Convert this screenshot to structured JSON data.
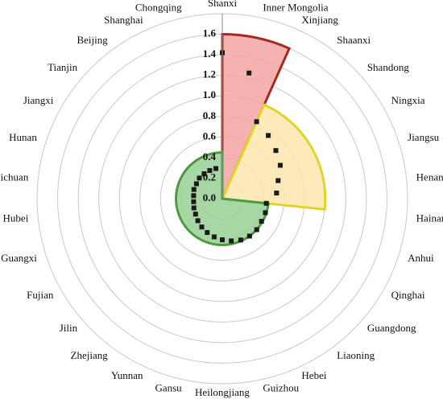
{
  "chart_data": {
    "type": "polar",
    "categories": [
      "Shanxi",
      "Inner Mongolia",
      "Xinjiang",
      "Shaanxi",
      "Shandong",
      "Ningxia",
      "Jiangsu",
      "Henan",
      "Hainan",
      "Anhui",
      "Qinghai",
      "Guangdong",
      "Liaoning",
      "Hebei",
      "Guizhou",
      "Heilongjiang",
      "Gansu",
      "Yunnan",
      "Zhejiang",
      "Jilin",
      "Fujian",
      "Guangxi",
      "Hubei",
      "Sichuan",
      "Hunan",
      "Jiangxi",
      "Tianjin",
      "Beijing",
      "Shanghai",
      "Chongqing"
    ],
    "values": [
      1.42,
      1.25,
      0.82,
      0.76,
      0.7,
      0.65,
      0.57,
      0.53,
      0.43,
      0.44,
      0.44,
      0.45,
      0.45,
      0.44,
      0.42,
      0.4,
      0.38,
      0.36,
      0.34,
      0.32,
      0.3,
      0.29,
      0.28,
      0.28,
      0.29,
      0.29,
      0.3,
      0.3,
      0.3,
      0.3
    ],
    "color": "#1a1a1a",
    "sectors": [
      {
        "start": "Shanxi",
        "end": "Xinjiang",
        "value": 1.6,
        "color": "#f5a8a8",
        "edge": "#a52a1f"
      },
      {
        "start": "Xinjiang",
        "end": "Hainan",
        "value": 1.0,
        "color": "#fde8b4",
        "edge": "#e0d428"
      },
      {
        "start": "Hainan",
        "end": "Shanxi",
        "value": 0.45,
        "color": "#9dd39a",
        "edge": "#4f9a3f"
      }
    ],
    "ylim": [
      0,
      1.8
    ],
    "yticks": [
      {
        "value": 0,
        "label": "0.0"
      },
      0.2,
      0.4,
      0.6,
      0.8,
      {
        "value": 1,
        "label": "1.0"
      },
      1.2,
      1.4,
      1.6
    ],
    "grid": true
  }
}
